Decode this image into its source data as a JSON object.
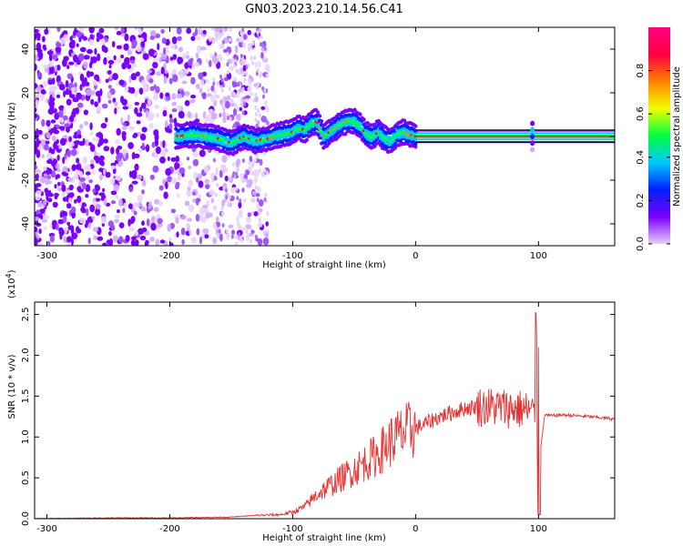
{
  "title": "GN03.2023.210.14.56.C41",
  "chart_data": [
    {
      "type": "heatmap",
      "xlabel": "Height of straight line (km)",
      "ylabel": "Frequency (Hz)",
      "xlim": [
        -310,
        162
      ],
      "ylim": [
        -50,
        50
      ],
      "xticks": [
        -300,
        -200,
        -100,
        0,
        100
      ],
      "yticks": [
        -40,
        -20,
        0,
        20,
        40
      ],
      "colorbar": {
        "label": "Normalized spectral amplitude",
        "range": [
          0.0,
          1.0
        ],
        "ticks": [
          "0.0",
          "0.2",
          "0.4",
          "0.6",
          "0.8"
        ],
        "colors": [
          "#e6ccff",
          "#7a00ff",
          "#0020ff",
          "#00c8ff",
          "#00ff40",
          "#f0ff00",
          "#ff8000",
          "#ff0040",
          "#ff0080"
        ]
      },
      "ridge": {
        "x": [
          -195,
          -180,
          -170,
          -160,
          -150,
          -140,
          -130,
          -120,
          -110,
          -100,
          -95,
          -90,
          -85,
          -80,
          -75,
          -70,
          -65,
          -60,
          -55,
          -50,
          -45,
          -40,
          -35,
          -30,
          -25,
          -20,
          -15,
          -10,
          -5,
          0,
          20,
          40,
          60,
          80,
          90,
          95,
          100,
          120,
          140,
          162
        ],
        "y": [
          0,
          1,
          0,
          -1,
          -3,
          0,
          -2,
          -1,
          1,
          2,
          4,
          3,
          6,
          7,
          0,
          2,
          4,
          6,
          7,
          7,
          5,
          1,
          0,
          2,
          -1,
          -2,
          1,
          2,
          1,
          0,
          0,
          0,
          0,
          0,
          0,
          2,
          0,
          0,
          0,
          0
        ]
      }
    },
    {
      "type": "line",
      "xlabel": "Height of straight line (km)",
      "ylabel": "SNR (10 * v/v)",
      "exponent_label": "(x10",
      "exponent_power": "4",
      "exponent_close": ")",
      "xlim": [
        -310,
        162
      ],
      "ylim": [
        0,
        2.65
      ],
      "xticks": [
        -300,
        -200,
        -100,
        0,
        100
      ],
      "yticks": [
        "0.0",
        "0.5",
        "1.0",
        "1.5",
        "2.0",
        "2.5"
      ],
      "color": "#e83030",
      "series": [
        {
          "x": [
            -310,
            -250,
            -200,
            -150,
            -130,
            -110,
            -100,
            -90,
            -80,
            -70,
            -60,
            -50,
            -40,
            -30,
            -20,
            -10,
            0,
            10,
            20,
            30,
            40,
            50,
            60,
            70,
            80,
            90,
            95,
            98,
            100,
            105,
            110,
            120,
            140,
            162
          ],
          "y": [
            0.0,
            0.01,
            0.01,
            0.02,
            0.04,
            0.05,
            0.08,
            0.15,
            0.3,
            0.4,
            0.5,
            0.6,
            0.7,
            0.8,
            0.95,
            1.05,
            1.1,
            1.18,
            1.25,
            1.3,
            1.35,
            1.37,
            1.37,
            1.36,
            1.35,
            1.33,
            1.3,
            1.2,
            0.6,
            1.27,
            1.26,
            1.27,
            1.25,
            1.22
          ]
        }
      ]
    }
  ]
}
